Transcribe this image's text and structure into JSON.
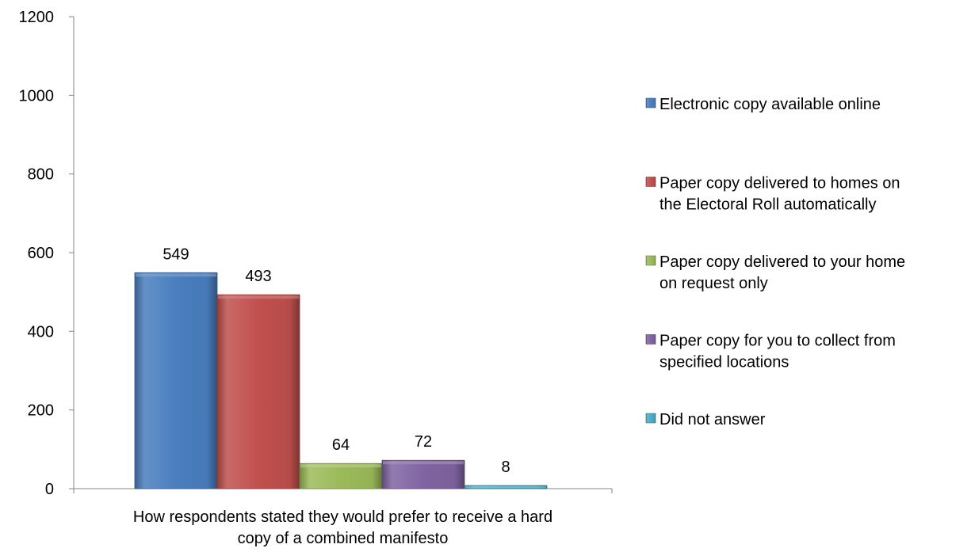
{
  "chart_data": {
    "type": "bar",
    "categories": [
      "How respondents stated they would prefer to receive a hard copy of a combined manifesto"
    ],
    "category_label_lines": [
      "How respondents stated they would prefer to receive a hard",
      "copy of a combined manifesto"
    ],
    "series": [
      {
        "name": "Electronic copy available online",
        "name_lines": [
          "Electronic copy available online"
        ],
        "values": [
          549
        ],
        "color": "#4a7ebf"
      },
      {
        "name": "Paper copy delivered to homes on the Electoral Roll automatically",
        "name_lines": [
          "Paper copy delivered to homes on",
          "the Electoral Roll automatically"
        ],
        "values": [
          493
        ],
        "color": "#c0504d"
      },
      {
        "name": "Paper copy delivered to your home on request only",
        "name_lines": [
          "Paper copy delivered to your home",
          "on request only"
        ],
        "values": [
          64
        ],
        "color": "#9bbb59"
      },
      {
        "name": "Paper copy for you to collect from specified locations",
        "name_lines": [
          "Paper copy for you to collect from",
          "specified locations"
        ],
        "values": [
          72
        ],
        "color": "#8064a2"
      },
      {
        "name": "Did not answer",
        "name_lines": [
          "Did not answer"
        ],
        "values": [
          8
        ],
        "color": "#4bacc6"
      }
    ],
    "data_labels": [
      "549",
      "493",
      "64",
      "72",
      "8"
    ],
    "y_ticks": [
      0,
      200,
      400,
      600,
      800,
      1000,
      1200
    ],
    "ylim": [
      0,
      1200
    ],
    "title": "",
    "xlabel": "",
    "ylabel": "",
    "grid": false,
    "legend_position": "right"
  }
}
